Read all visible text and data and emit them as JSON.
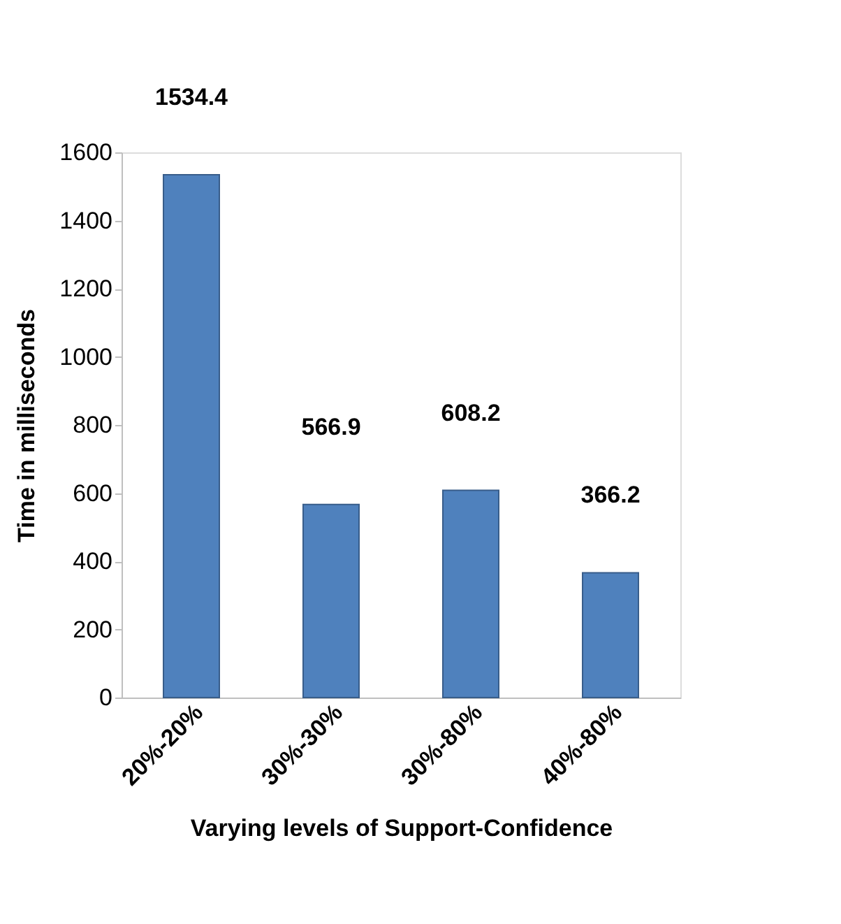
{
  "chart_data": {
    "type": "bar",
    "xlabel": "Varying levels of Support-Confidence",
    "ylabel": "Time in milliseconds",
    "categories": [
      "20%-20%",
      "30%-30%",
      "30%-80%",
      "40%-80%"
    ],
    "values": [
      1534.4,
      566.9,
      608.2,
      366.2
    ],
    "color": "#4f81bd",
    "ylim": [
      0,
      1600
    ],
    "yticks": [
      0,
      200,
      400,
      600,
      800,
      1000,
      1200,
      1400,
      1600
    ],
    "grid": false,
    "data_labels": true
  }
}
